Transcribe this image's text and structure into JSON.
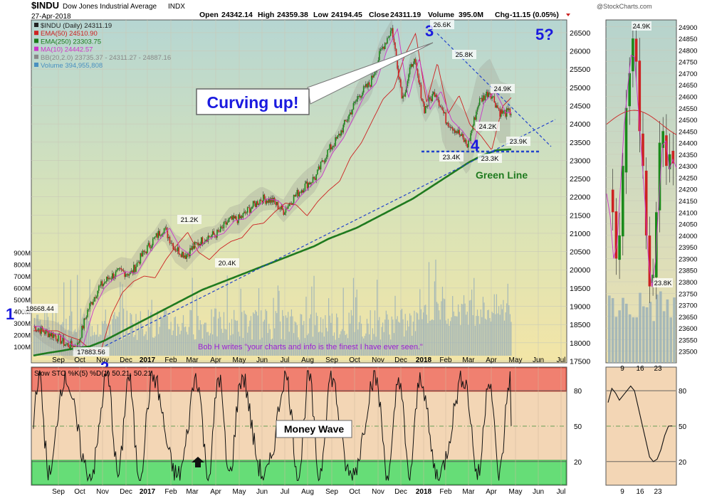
{
  "header": {
    "symbol": "$INDU",
    "name": "Dow Jones Industrial Average",
    "exchange": "INDX",
    "date": "27-Apr-2018",
    "open_label": "Open",
    "open": "24342.14",
    "high_label": "High",
    "high": "24359.38",
    "low_label": "Low",
    "low": "24194.45",
    "close_label": "Close",
    "close": "24311.19",
    "volume_label": "Volume",
    "volume": "395.0M",
    "chg_label": "Chg",
    "chg": "-11.15 (0.05%)",
    "watermark": "@StockCharts.com"
  },
  "legend": [
    {
      "text": "$INDU (Daily) 24311.19",
      "color": "#222222"
    },
    {
      "text": "EMA(50) 24510.90",
      "color": "#cc2222"
    },
    {
      "text": "EMA(250) 23303.75",
      "color": "#1a7a1a"
    },
    {
      "text": "MA(10) 24442.57",
      "color": "#cc33cc"
    },
    {
      "text": "BB(20,2.0) 23735.37 - 24311.27 - 24887.16",
      "color": "#888888"
    },
    {
      "text": "Volume 394,955,808",
      "color": "#4a90c0"
    }
  ],
  "annotations": {
    "curving_up": "Curving up!",
    "label_1": "1",
    "label_2": "2",
    "label_3": "3",
    "label_4": "4",
    "label_5": "5?",
    "green_line": "Green Line",
    "quote": "Bob H writes \"your charts and info is the finest I have ever seen.\"",
    "money_wave": "Money Wave"
  },
  "colors": {
    "bg_top": "#b9d7cf",
    "bg_bottom": "#f5e6a8",
    "green_line": "#1f7a1f",
    "ema50": "#cc2222",
    "ma10": "#cc33cc",
    "trend": "#2244cc",
    "label_blue": "#1a1adf",
    "sto_bg": "#f3d6b5",
    "sto_over": "#f08070",
    "sto_under": "#66dd77",
    "volume": "#9ab0b8"
  },
  "chart_data": [
    {
      "type": "line",
      "id": "price",
      "title": "$INDU Dow Jones Industrial Average INDX",
      "y_ticks": [
        17500,
        18000,
        18500,
        19000,
        19500,
        20000,
        20500,
        21000,
        21500,
        22000,
        22500,
        23000,
        23500,
        24000,
        24500,
        25000,
        25500,
        26000,
        26500
      ],
      "ylim": [
        17450,
        26850
      ],
      "x_labels": [
        "Sep",
        "Oct",
        "Nov",
        "Dec",
        "2017",
        "Feb",
        "Mar",
        "Apr",
        "May",
        "Jun",
        "Jul",
        "Aug",
        "Sep",
        "Oct",
        "Nov",
        "Dec",
        "2018",
        "Feb",
        "Mar",
        "Apr",
        "May",
        "Jun",
        "Jul"
      ],
      "volume_ticks": [
        "100M",
        "200M",
        "300M",
        "400M",
        "500M",
        "600M",
        "700M",
        "800M",
        "900M"
      ],
      "price_labels": [
        "18668.44",
        "17883.56",
        "21.2K",
        "20.4K",
        "25.8K",
        "26.6K",
        "24.2K",
        "23.4K",
        "24.9K",
        "23.9K",
        "23.3K"
      ],
      "series": [
        {
          "name": "$INDU (Daily)",
          "values": [
            18450,
            18300,
            18200,
            17950,
            17884,
            18900,
            19500,
            19800,
            19950,
            19900,
            20400,
            20800,
            21150,
            20600,
            20400,
            20700,
            20900,
            21000,
            21350,
            21400,
            21700,
            21950,
            21900,
            21600,
            22000,
            22300,
            22550,
            23200,
            23600,
            24200,
            24800,
            25100,
            26000,
            26608,
            24700,
            25800,
            24400,
            24900,
            24100,
            23800,
            23400,
            24600,
            24900,
            24300,
            24311
          ]
        },
        {
          "name": "EMA(250)",
          "values": [
            17650,
            17720,
            17780,
            17850,
            17900,
            18050,
            18250,
            18450,
            18650,
            18850,
            19050,
            19250,
            19450,
            19600,
            19750,
            19900,
            20050,
            20200,
            20350,
            20500,
            20650,
            20850,
            21000,
            21150,
            21350,
            21550,
            21750,
            21950,
            22200,
            22450,
            22700,
            22950,
            23150,
            23280,
            23303
          ]
        }
      ]
    },
    {
      "type": "line",
      "id": "slow_sto",
      "title": "Slow STO %K(5) %D(1) 50.21, 50.21",
      "y_ticks": [
        20,
        50,
        80
      ],
      "ylim": [
        0,
        100
      ]
    },
    {
      "type": "bar",
      "id": "zoom",
      "x_labels": [
        "9",
        "16",
        "23"
      ],
      "y_ticks": [
        23500,
        23550,
        23600,
        23650,
        23700,
        23750,
        23800,
        23850,
        23900,
        23950,
        24000,
        24050,
        24100,
        24150,
        24200,
        24250,
        24300,
        24350,
        24400,
        24450,
        24500,
        24550,
        24600,
        24650,
        24700,
        24750,
        24800,
        24850,
        24900
      ],
      "ylim": [
        23450,
        24930
      ],
      "price_labels": [
        "24.9K",
        "23.8K"
      ],
      "sto_ticks": [
        20,
        50,
        80
      ]
    }
  ]
}
